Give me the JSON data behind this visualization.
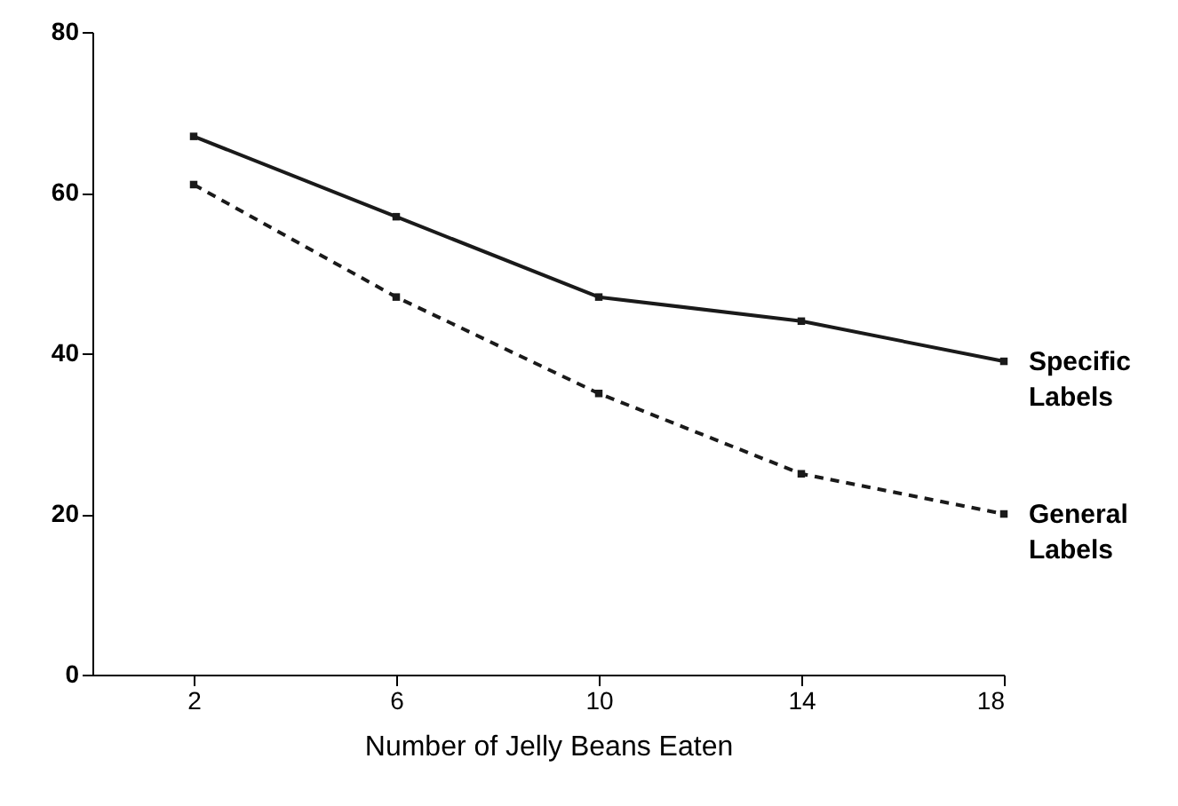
{
  "chart_data": {
    "type": "line",
    "xlabel": "Number of Jelly Beans Eaten",
    "x": [
      2,
      6,
      10,
      14,
      18
    ],
    "series": [
      {
        "name": "Specific Labels",
        "color": "#1a1a1a",
        "line_style": "solid",
        "values": [
          67,
          57,
          47,
          44,
          39
        ]
      },
      {
        "name": "General Labels",
        "color": "#1a1a1a",
        "line_style": "dashed",
        "values": [
          61,
          47,
          35,
          25,
          20
        ]
      }
    ],
    "xlim": [
      0,
      18
    ],
    "xticks": [
      2,
      6,
      10,
      14,
      18
    ],
    "ylim": [
      0,
      80
    ],
    "yticks": [
      0,
      20,
      40,
      60,
      80
    ],
    "grid": false,
    "legend": false,
    "marker": "square"
  }
}
